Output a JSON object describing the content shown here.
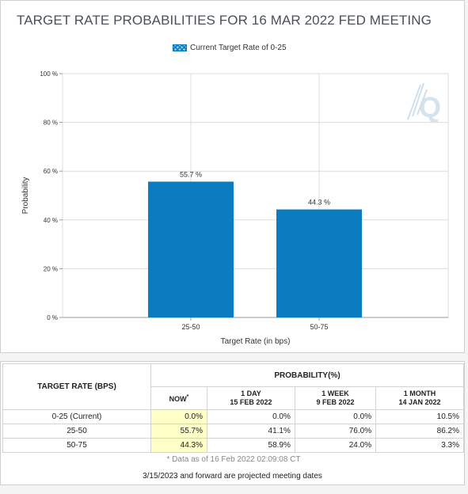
{
  "chart_data": {
    "type": "bar",
    "title": "TARGET RATE PROBABILITIES FOR 16 MAR 2022 FED MEETING",
    "legend": "Current Target Rate of 0-25",
    "xlabel": "Target Rate (in bps)",
    "ylabel": "Probability",
    "categories": [
      "25-50",
      "50-75"
    ],
    "values": [
      55.7,
      44.3
    ],
    "value_labels": [
      "55.7 %",
      "44.3 %"
    ],
    "ylim": [
      0,
      100
    ],
    "yticks": [
      0,
      20,
      40,
      60,
      80,
      100
    ],
    "ytick_labels": [
      "0 %",
      "20 %",
      "40 %",
      "60 %",
      "80 %",
      "100 %"
    ],
    "grid": true,
    "bar_color": "#0b7cc0"
  },
  "table": {
    "rate_header": "TARGET RATE (BPS)",
    "prob_header": "PROBABILITY(%)",
    "col_now": "NOW",
    "col_now_mark": "*",
    "col_1day": [
      "1 DAY",
      "15 FEB 2022"
    ],
    "col_1week": [
      "1 WEEK",
      "9 FEB 2022"
    ],
    "col_1month": [
      "1 MONTH",
      "14 JAN 2022"
    ],
    "rows": [
      {
        "rate": "0-25 (Current)",
        "now": "0.0%",
        "day": "0.0%",
        "week": "0.0%",
        "month": "10.5%"
      },
      {
        "rate": "25-50",
        "now": "55.7%",
        "day": "41.1%",
        "week": "76.0%",
        "month": "86.2%"
      },
      {
        "rate": "50-75",
        "now": "44.3%",
        "day": "58.9%",
        "week": "24.0%",
        "month": "3.3%"
      }
    ],
    "data_note": "* Data as of 16 Feb 2022 02:09:08 CT"
  },
  "projected_note": "3/15/2023 and forward are projected meeting dates",
  "watermark": "Q",
  "now_highlight_color": "#ffffc8"
}
